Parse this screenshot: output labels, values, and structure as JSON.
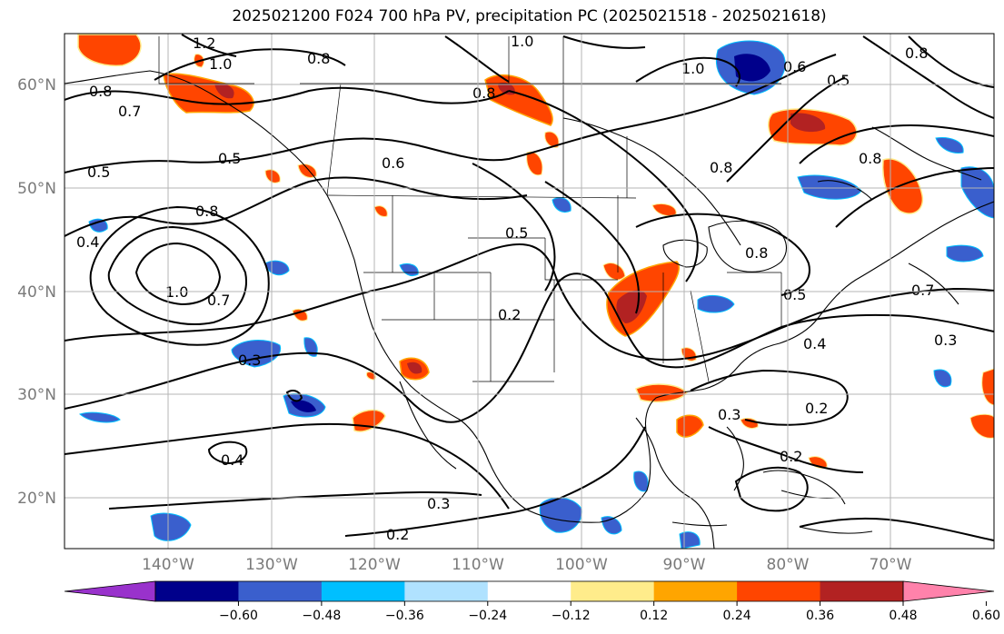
{
  "title": "2025021200 F024 700 hPa PV, precipitation PC (2025021518 - 2025021618)",
  "lat_labels": [
    "60°N",
    "50°N",
    "40°N",
    "30°N",
    "20°N"
  ],
  "lon_labels": [
    "140°W",
    "130°W",
    "120°W",
    "110°W",
    "100°W",
    "90°W",
    "80°W",
    "70°W"
  ],
  "colorbar": {
    "ticks": [
      "−0.60",
      "−0.48",
      "−0.36",
      "−0.24",
      "−0.12",
      "0.12",
      "0.24",
      "0.36",
      "0.48",
      "0.60"
    ],
    "colors": [
      "#9932cc",
      "#00008b",
      "#3a5fcd",
      "#00bfff",
      "#b0e2ff",
      "#ffffff",
      "#ffec8b",
      "#ffa500",
      "#ff4500",
      "#b22222",
      "#ff82ab"
    ]
  },
  "contour_labels": [
    {
      "text": "1.2"
    },
    {
      "text": "1.0"
    },
    {
      "text": "0.8"
    },
    {
      "text": "1.0"
    },
    {
      "text": "1.0"
    },
    {
      "text": "0.6"
    },
    {
      "text": "0.5"
    },
    {
      "text": "0.8"
    },
    {
      "text": "0.8"
    },
    {
      "text": "0.7"
    },
    {
      "text": "0.5"
    },
    {
      "text": "0.8"
    },
    {
      "text": "0.5"
    },
    {
      "text": "0.6"
    },
    {
      "text": "0.8"
    },
    {
      "text": "0.4"
    },
    {
      "text": "0.8"
    },
    {
      "text": "0.5"
    },
    {
      "text": "0.8"
    },
    {
      "text": "1.0"
    },
    {
      "text": "0.7"
    },
    {
      "text": "0.2"
    },
    {
      "text": "0.5"
    },
    {
      "text": "0.7"
    },
    {
      "text": "0.4"
    },
    {
      "text": "0.3"
    },
    {
      "text": "0.3"
    },
    {
      "text": "0.2"
    },
    {
      "text": "0.4"
    },
    {
      "text": "0.3"
    },
    {
      "text": "0.2"
    },
    {
      "text": "0.3"
    },
    {
      "text": "0.2"
    },
    {
      "text": "0.8"
    }
  ],
  "colors": {
    "contour": "#000000",
    "grid": "#b4b4b4",
    "axis_label": "#7a7a7a",
    "neg_dark": "#00008b",
    "neg_mid": "#3a5fcd",
    "neg_light": "#00bfff",
    "pos_light": "#ffec8b",
    "pos_mid": "#ffa500",
    "pos_strong": "#ff4500",
    "pos_dark": "#b22222"
  }
}
